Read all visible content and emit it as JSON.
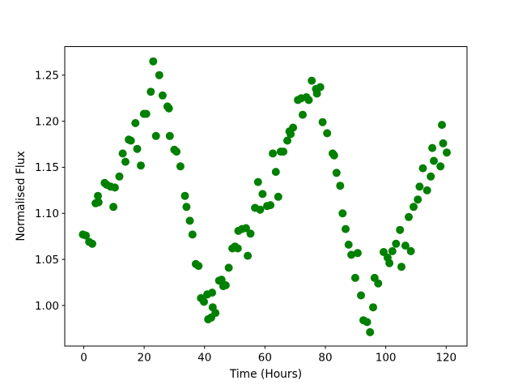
{
  "figure": {
    "background": "#ffffff"
  },
  "chart_data": {
    "type": "scatter",
    "title": "",
    "xlabel": "Time (Hours)",
    "ylabel": "Normalised Flux",
    "legend": "none",
    "grid": false,
    "marker_color": "#008000",
    "marker_diameter_px": 10,
    "xlim": [
      -6.3,
      126.9
    ],
    "ylim": [
      0.956,
      1.281
    ],
    "x_tick_values": [
      0,
      20,
      40,
      60,
      80,
      100,
      120
    ],
    "x_tick_labels": [
      "0",
      "20",
      "40",
      "60",
      "80",
      "100",
      "120"
    ],
    "y_tick_values": [
      1.0,
      1.05,
      1.1,
      1.15,
      1.2,
      1.25
    ],
    "y_tick_labels": [
      "1.00",
      "1.05",
      "1.10",
      "1.15",
      "1.20",
      "1.25"
    ],
    "points": [
      [
        -0.3,
        1.077
      ],
      [
        0.7,
        1.076
      ],
      [
        1.8,
        1.069
      ],
      [
        2.8,
        1.067
      ],
      [
        3.9,
        1.111
      ],
      [
        4.7,
        1.119
      ],
      [
        4.9,
        1.112
      ],
      [
        6.9,
        1.133
      ],
      [
        7.6,
        1.131
      ],
      [
        8.9,
        1.129
      ],
      [
        9.8,
        1.107
      ],
      [
        10.3,
        1.128
      ],
      [
        11.8,
        1.14
      ],
      [
        12.9,
        1.165
      ],
      [
        13.8,
        1.156
      ],
      [
        14.9,
        1.18
      ],
      [
        15.6,
        1.179
      ],
      [
        17.1,
        1.198
      ],
      [
        17.7,
        1.17
      ],
      [
        18.9,
        1.152
      ],
      [
        19.9,
        1.208
      ],
      [
        20.7,
        1.208
      ],
      [
        22.2,
        1.232
      ],
      [
        23.0,
        1.265
      ],
      [
        23.9,
        1.184
      ],
      [
        25.0,
        1.25
      ],
      [
        26.1,
        1.228
      ],
      [
        27.7,
        1.216
      ],
      [
        28.2,
        1.214
      ],
      [
        28.5,
        1.184
      ],
      [
        30.0,
        1.169
      ],
      [
        30.7,
        1.167
      ],
      [
        32.0,
        1.151
      ],
      [
        33.5,
        1.119
      ],
      [
        34.0,
        1.107
      ],
      [
        35.1,
        1.092
      ],
      [
        36.0,
        1.077
      ],
      [
        37.1,
        1.045
      ],
      [
        38.0,
        1.043
      ],
      [
        38.8,
        1.008
      ],
      [
        39.8,
        1.004
      ],
      [
        40.9,
        1.012
      ],
      [
        41.2,
        0.985
      ],
      [
        42.2,
        0.987
      ],
      [
        42.5,
        1.014
      ],
      [
        42.7,
        0.998
      ],
      [
        43.6,
        0.992
      ],
      [
        44.8,
        1.027
      ],
      [
        45.6,
        1.028
      ],
      [
        46.2,
        1.021
      ],
      [
        47.0,
        1.022
      ],
      [
        48.0,
        1.041
      ],
      [
        49.2,
        1.062
      ],
      [
        50.1,
        1.064
      ],
      [
        51.0,
        1.062
      ],
      [
        51.2,
        1.081
      ],
      [
        52.4,
        1.083
      ],
      [
        53.7,
        1.084
      ],
      [
        54.3,
        1.054
      ],
      [
        55.2,
        1.078
      ],
      [
        56.7,
        1.106
      ],
      [
        57.7,
        1.134
      ],
      [
        58.4,
        1.104
      ],
      [
        59.2,
        1.121
      ],
      [
        60.7,
        1.108
      ],
      [
        61.8,
        1.109
      ],
      [
        62.6,
        1.165
      ],
      [
        63.6,
        1.145
      ],
      [
        64.4,
        1.118
      ],
      [
        65.2,
        1.167
      ],
      [
        66.1,
        1.167
      ],
      [
        67.4,
        1.179
      ],
      [
        68.1,
        1.189
      ],
      [
        68.5,
        1.186
      ],
      [
        69.3,
        1.193
      ],
      [
        70.9,
        1.223
      ],
      [
        72.0,
        1.225
      ],
      [
        72.5,
        1.207
      ],
      [
        73.7,
        1.226
      ],
      [
        74.5,
        1.223
      ],
      [
        75.5,
        1.244
      ],
      [
        76.9,
        1.235
      ],
      [
        77.2,
        1.23
      ],
      [
        78.3,
        1.237
      ],
      [
        79.1,
        1.199
      ],
      [
        80.6,
        1.187
      ],
      [
        82.4,
        1.165
      ],
      [
        82.9,
        1.163
      ],
      [
        83.7,
        1.144
      ],
      [
        84.9,
        1.13
      ],
      [
        85.7,
        1.1
      ],
      [
        86.7,
        1.083
      ],
      [
        87.7,
        1.066
      ],
      [
        88.6,
        1.055
      ],
      [
        89.9,
        1.03
      ],
      [
        90.7,
        1.057
      ],
      [
        91.8,
        1.011
      ],
      [
        92.6,
        0.984
      ],
      [
        93.8,
        0.982
      ],
      [
        94.8,
        0.971
      ],
      [
        95.8,
        0.998
      ],
      [
        96.3,
        1.03
      ],
      [
        97.5,
        1.024
      ],
      [
        99.3,
        1.058
      ],
      [
        100.6,
        1.052
      ],
      [
        101.2,
        1.046
      ],
      [
        102.2,
        1.059
      ],
      [
        103.4,
        1.067
      ],
      [
        104.7,
        1.082
      ],
      [
        105.2,
        1.042
      ],
      [
        106.5,
        1.065
      ],
      [
        107.6,
        1.096
      ],
      [
        108.3,
        1.059
      ],
      [
        109.2,
        1.107
      ],
      [
        110.6,
        1.115
      ],
      [
        111.2,
        1.129
      ],
      [
        112.3,
        1.149
      ],
      [
        113.7,
        1.125
      ],
      [
        114.9,
        1.14
      ],
      [
        115.4,
        1.171
      ],
      [
        115.9,
        1.157
      ],
      [
        118.1,
        1.151
      ],
      [
        118.6,
        1.196
      ],
      [
        119.0,
        1.176
      ],
      [
        120.2,
        1.166
      ]
    ]
  }
}
